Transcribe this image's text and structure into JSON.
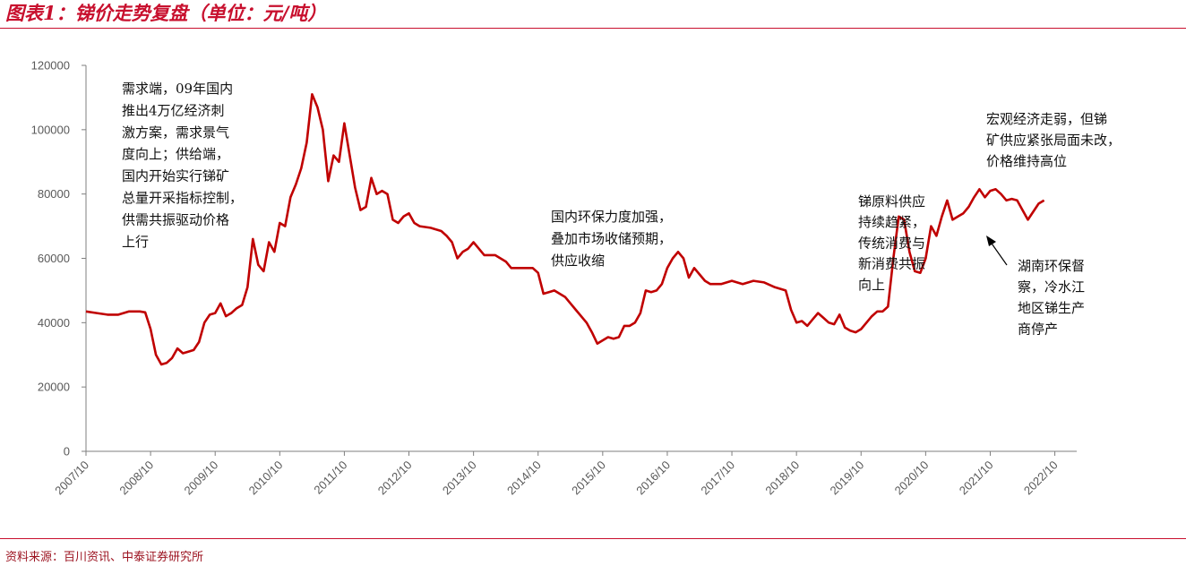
{
  "page": {
    "title": "图表1：锑价走势复盘（单位：元/吨）",
    "source": "资料来源：百川资讯、中泰证券研究所"
  },
  "colors": {
    "accent": "#c8102e",
    "line": "#c00000",
    "axis": "#7f7f7f"
  },
  "chart_data": {
    "type": "line",
    "title": "",
    "xlabel": "",
    "ylabel": "",
    "ylim": [
      0,
      120000
    ],
    "y_ticks": [
      0,
      20000,
      40000,
      60000,
      80000,
      100000,
      120000
    ],
    "x_ticks": [
      "2007/10",
      "2008/10",
      "2009/10",
      "2010/10",
      "2011/10",
      "2012/10",
      "2013/10",
      "2014/10",
      "2015/10",
      "2016/10",
      "2017/10",
      "2018/10",
      "2019/10",
      "2020/10",
      "2021/10",
      "2022/10"
    ],
    "grid": false,
    "legend": "none",
    "series": [
      {
        "name": "",
        "points": [
          [
            "2007-10",
            43500
          ],
          [
            "2007-12",
            43000
          ],
          [
            "2008-02",
            42500
          ],
          [
            "2008-04",
            42500
          ],
          [
            "2008-06",
            43500
          ],
          [
            "2008-08",
            43500
          ],
          [
            "2008-09",
            43200
          ],
          [
            "2008-10",
            38000
          ],
          [
            "2008-11",
            30000
          ],
          [
            "2008-12",
            27000
          ],
          [
            "2009-01",
            27500
          ],
          [
            "2009-02",
            29000
          ],
          [
            "2009-03",
            32000
          ],
          [
            "2009-04",
            30500
          ],
          [
            "2009-05",
            31000
          ],
          [
            "2009-06",
            31500
          ],
          [
            "2009-07",
            34000
          ],
          [
            "2009-08",
            40000
          ],
          [
            "2009-09",
            42500
          ],
          [
            "2009-10",
            43000
          ],
          [
            "2009-11",
            46000
          ],
          [
            "2009-12",
            42000
          ],
          [
            "2010-01",
            43000
          ],
          [
            "2010-02",
            44500
          ],
          [
            "2010-03",
            45500
          ],
          [
            "2010-04",
            51000
          ],
          [
            "2010-05",
            66000
          ],
          [
            "2010-06",
            58000
          ],
          [
            "2010-07",
            56000
          ],
          [
            "2010-08",
            65000
          ],
          [
            "2010-09",
            62000
          ],
          [
            "2010-10",
            71000
          ],
          [
            "2010-11",
            70000
          ],
          [
            "2010-12",
            79000
          ],
          [
            "2011-01",
            83000
          ],
          [
            "2011-02",
            88000
          ],
          [
            "2011-03",
            96000
          ],
          [
            "2011-04",
            111000
          ],
          [
            "2011-05",
            107000
          ],
          [
            "2011-06",
            100000
          ],
          [
            "2011-07",
            84000
          ],
          [
            "2011-08",
            92000
          ],
          [
            "2011-09",
            90000
          ],
          [
            "2011-10",
            102000
          ],
          [
            "2011-11",
            92000
          ],
          [
            "2011-12",
            82000
          ],
          [
            "2012-01",
            75000
          ],
          [
            "2012-02",
            76000
          ],
          [
            "2012-03",
            85000
          ],
          [
            "2012-04",
            80000
          ],
          [
            "2012-05",
            81000
          ],
          [
            "2012-06",
            80000
          ],
          [
            "2012-07",
            72000
          ],
          [
            "2012-08",
            71000
          ],
          [
            "2012-09",
            73000
          ],
          [
            "2012-10",
            74000
          ],
          [
            "2012-11",
            71000
          ],
          [
            "2012-12",
            70000
          ],
          [
            "2013-02",
            69500
          ],
          [
            "2013-04",
            68500
          ],
          [
            "2013-05",
            67000
          ],
          [
            "2013-06",
            65000
          ],
          [
            "2013-07",
            60000
          ],
          [
            "2013-08",
            62000
          ],
          [
            "2013-09",
            63000
          ],
          [
            "2013-10",
            65000
          ],
          [
            "2013-11",
            63000
          ],
          [
            "2013-12",
            61000
          ],
          [
            "2014-02",
            61000
          ],
          [
            "2014-04",
            59000
          ],
          [
            "2014-05",
            57000
          ],
          [
            "2014-07",
            57000
          ],
          [
            "2014-09",
            57000
          ],
          [
            "2014-10",
            55500
          ],
          [
            "2014-11",
            49000
          ],
          [
            "2014-12",
            49500
          ],
          [
            "2015-01",
            50000
          ],
          [
            "2015-03",
            48000
          ],
          [
            "2015-05",
            44000
          ],
          [
            "2015-07",
            40000
          ],
          [
            "2015-08",
            37000
          ],
          [
            "2015-09",
            33500
          ],
          [
            "2015-10",
            34500
          ],
          [
            "2015-11",
            35500
          ],
          [
            "2015-12",
            35000
          ],
          [
            "2016-01",
            35500
          ],
          [
            "2016-02",
            39000
          ],
          [
            "2016-03",
            39000
          ],
          [
            "2016-04",
            40000
          ],
          [
            "2016-05",
            43000
          ],
          [
            "2016-06",
            50000
          ],
          [
            "2016-07",
            49500
          ],
          [
            "2016-08",
            50000
          ],
          [
            "2016-09",
            52000
          ],
          [
            "2016-10",
            57000
          ],
          [
            "2016-11",
            60000
          ],
          [
            "2016-12",
            62000
          ],
          [
            "2017-01",
            60000
          ],
          [
            "2017-02",
            54000
          ],
          [
            "2017-03",
            57000
          ],
          [
            "2017-04",
            55000
          ],
          [
            "2017-05",
            53000
          ],
          [
            "2017-06",
            52000
          ],
          [
            "2017-08",
            52000
          ],
          [
            "2017-10",
            53000
          ],
          [
            "2017-12",
            52000
          ],
          [
            "2018-02",
            53000
          ],
          [
            "2018-04",
            52500
          ],
          [
            "2018-06",
            51000
          ],
          [
            "2018-08",
            50000
          ],
          [
            "2018-09",
            44000
          ],
          [
            "2018-10",
            40000
          ],
          [
            "2018-11",
            40500
          ],
          [
            "2018-12",
            39000
          ],
          [
            "2019-01",
            41000
          ],
          [
            "2019-02",
            43000
          ],
          [
            "2019-03",
            41500
          ],
          [
            "2019-04",
            40000
          ],
          [
            "2019-05",
            39500
          ],
          [
            "2019-06",
            42500
          ],
          [
            "2019-07",
            38500
          ],
          [
            "2019-08",
            37500
          ],
          [
            "2019-09",
            37000
          ],
          [
            "2019-10",
            38000
          ],
          [
            "2019-11",
            40000
          ],
          [
            "2019-12",
            42000
          ],
          [
            "2020-01",
            43500
          ],
          [
            "2020-02",
            43500
          ],
          [
            "2020-03",
            45000
          ],
          [
            "2020-04",
            60000
          ],
          [
            "2020-05",
            73000
          ],
          [
            "2020-06",
            72000
          ],
          [
            "2020-07",
            62000
          ],
          [
            "2020-08",
            56000
          ],
          [
            "2020-09",
            55500
          ],
          [
            "2020-10",
            60000
          ],
          [
            "2020-11",
            70000
          ],
          [
            "2020-12",
            67000
          ],
          [
            "2021-01",
            73000
          ],
          [
            "2021-02",
            78000
          ],
          [
            "2021-03",
            72000
          ],
          [
            "2021-04",
            73000
          ],
          [
            "2021-05",
            74000
          ],
          [
            "2021-06",
            76000
          ],
          [
            "2021-07",
            79000
          ],
          [
            "2021-08",
            81500
          ],
          [
            "2021-09",
            79000
          ],
          [
            "2021-10",
            81000
          ],
          [
            "2021-11",
            81500
          ],
          [
            "2021-12",
            80000
          ],
          [
            "2022-01",
            78000
          ],
          [
            "2022-02",
            78500
          ],
          [
            "2022-03",
            78000
          ],
          [
            "2022-04",
            75000
          ],
          [
            "2022-05",
            72000
          ],
          [
            "2022-06",
            74500
          ],
          [
            "2022-07",
            77000
          ],
          [
            "2022-08",
            78000
          ]
        ]
      }
    ],
    "annotations": [
      {
        "id": "demand",
        "lines": [
          "需求端，09年国内",
          "推出4万亿经济刺",
          "激方案，需求景气",
          "度向上；供给端，",
          "国内开始实行锑矿",
          "总量开采指标控制，",
          "供需共振驱动价格",
          "上行"
        ]
      },
      {
        "id": "env",
        "lines": [
          "国内环保力度加强，",
          "叠加市场收储预期，",
          "供应收缩"
        ]
      },
      {
        "id": "raw",
        "lines": [
          "锑原料供应",
          "持续趋紧，",
          "传统消费与",
          "新消费共振",
          "向上"
        ]
      },
      {
        "id": "macro",
        "lines": [
          "宏观经济走弱，但锑",
          "矿供应紧张局面未改，",
          "价格维持高位"
        ]
      },
      {
        "id": "hunan",
        "lines": [
          "湖南环保督",
          "察，冷水江",
          "地区锑生产",
          "商停产"
        ]
      }
    ]
  }
}
